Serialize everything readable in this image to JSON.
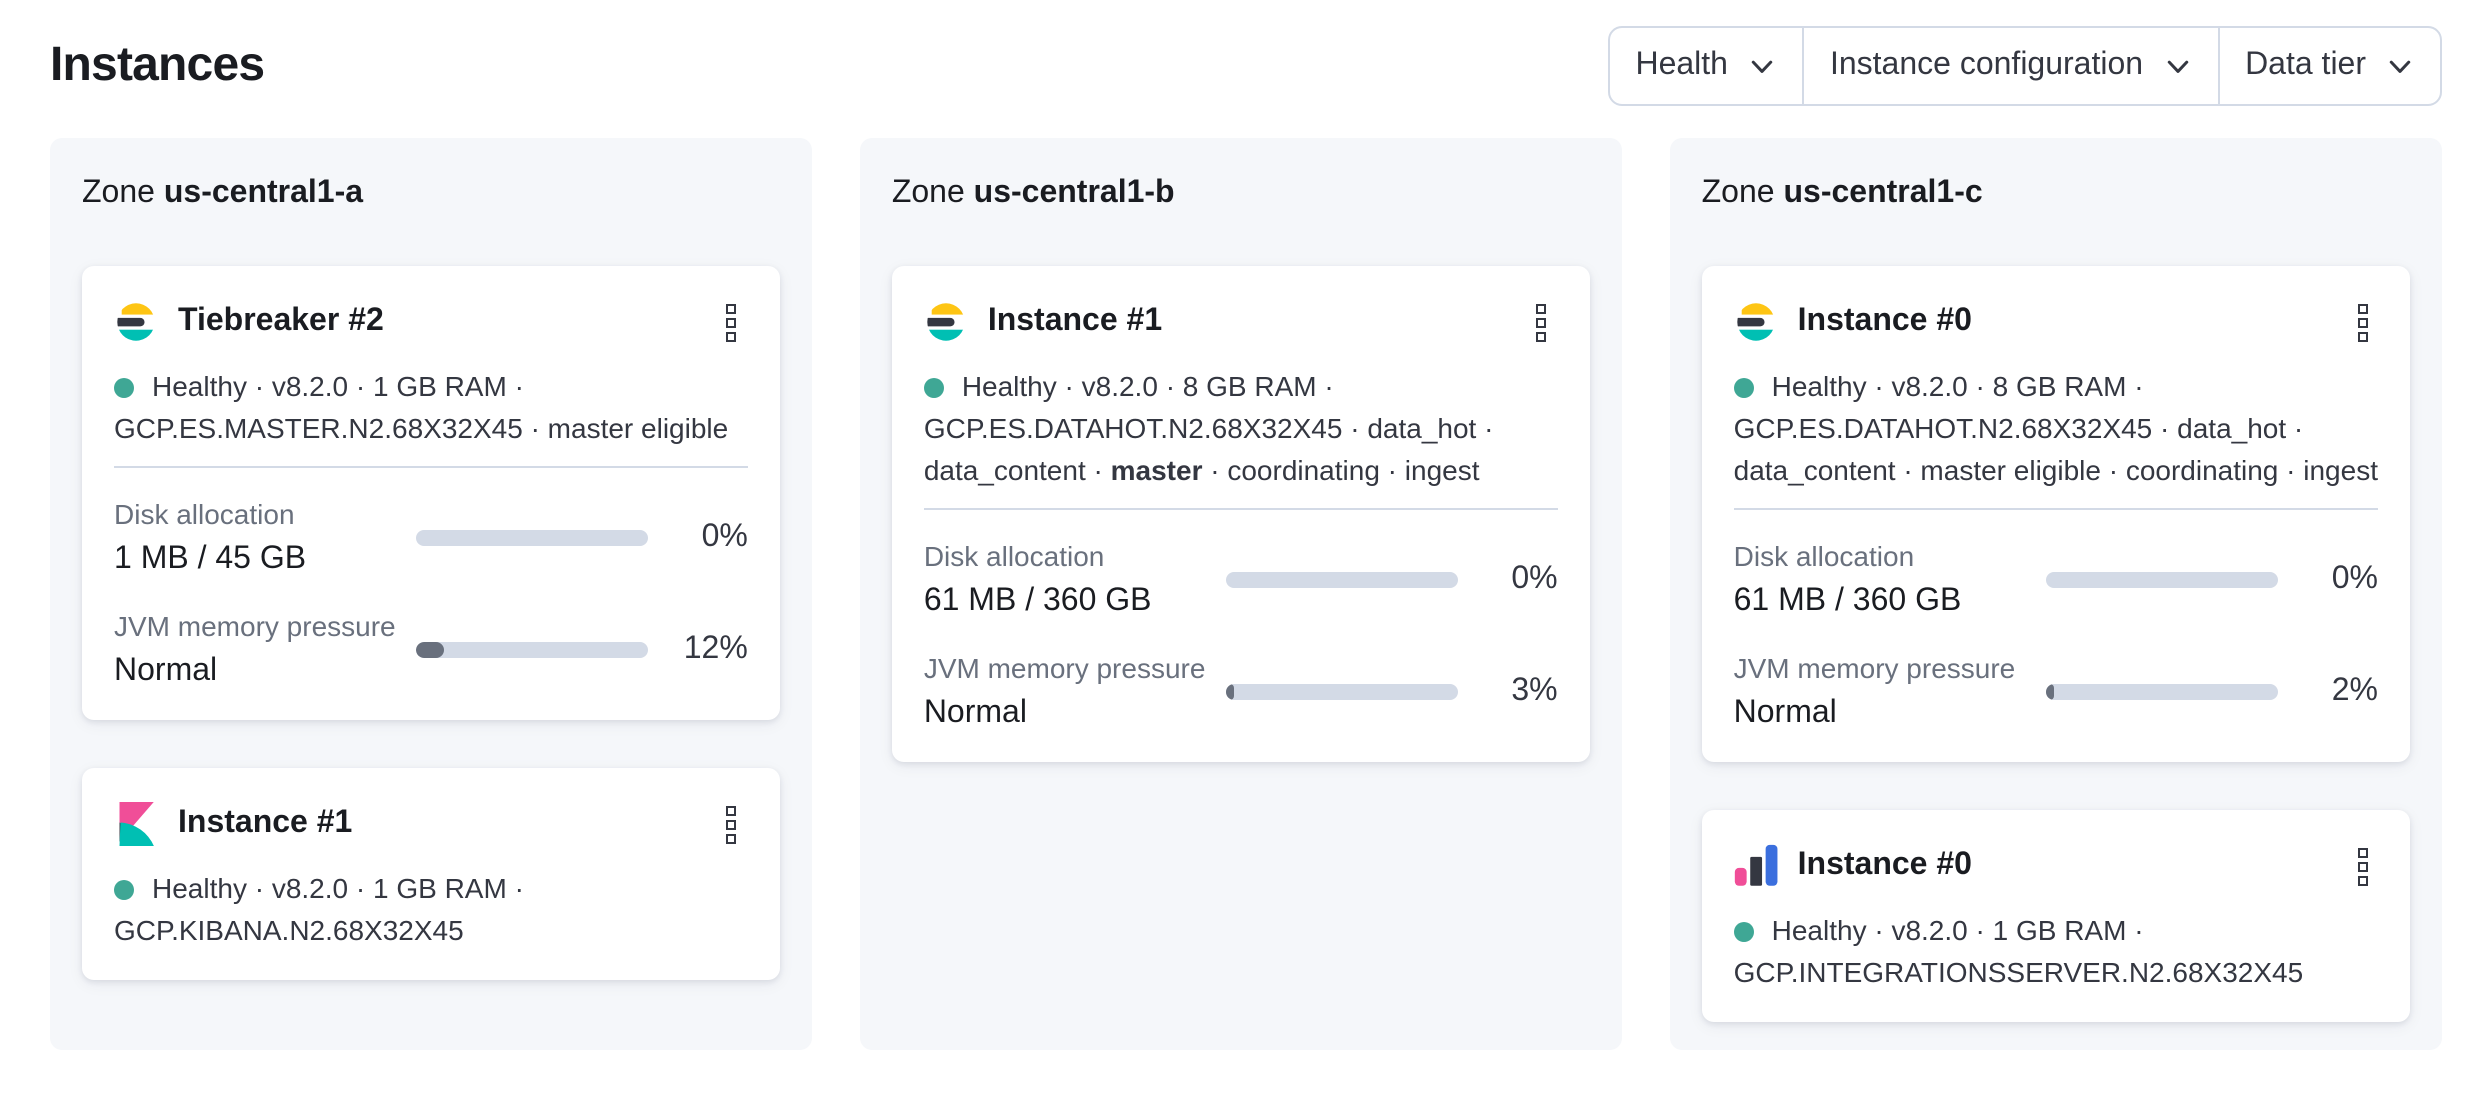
{
  "colors": {
    "accent_yellow": "#FEC514",
    "accent_teal": "#00BFB3",
    "accent_dark": "#343741",
    "accent_pink": "#F04E98",
    "accent_blue": "#3B6FDE",
    "health_dot": "#3FA795",
    "panel_bg": "#F5F7FA",
    "card_bg": "#FFFFFF",
    "border": "#D3DAE6",
    "track": "#D3DAE6",
    "bar_fill": "#69707D",
    "text_title": "#1A1C21",
    "text_body": "#343741",
    "text_subdued": "#69707D"
  },
  "header": {
    "title": "Instances"
  },
  "filters": [
    {
      "label": "Health"
    },
    {
      "label": "Instance configuration"
    },
    {
      "label": "Data tier"
    }
  ],
  "zones": [
    {
      "zone_label": "Zone",
      "zone_name": "us-central1-a",
      "cards": [
        {
          "logo": "elasticsearch-logo",
          "title": "Tiebreaker #2",
          "health": "Healthy",
          "status_lines": [
            "Healthy · v8.2.0 · 1 GB RAM ·",
            "GCP.ES.MASTER.N2.68X32X45 · master eligible"
          ],
          "metrics": [
            {
              "label": "Disk allocation",
              "value": "1 MB / 45 GB",
              "percent": "0%",
              "fill_pct": 0
            },
            {
              "label": "JVM memory pressure",
              "value": "Normal",
              "percent": "12%",
              "fill_pct": 12
            }
          ]
        },
        {
          "logo": "kibana-logo",
          "title": "Instance #1",
          "health": "Healthy",
          "status_lines": [
            "Healthy · v8.2.0 · 1 GB RAM ·",
            "GCP.KIBANA.N2.68X32X45"
          ],
          "metrics": []
        }
      ]
    },
    {
      "zone_label": "Zone",
      "zone_name": "us-central1-b",
      "cards": [
        {
          "logo": "elasticsearch-logo",
          "title": "Instance #1",
          "health": "Healthy",
          "status_lines": [
            "Healthy · v8.2.0 · 8 GB RAM ·",
            "GCP.ES.DATAHOT.N2.68X32X45 · data_hot ·",
            "data_content · **master** · coordinating · ingest"
          ],
          "metrics": [
            {
              "label": "Disk allocation",
              "value": "61 MB / 360 GB",
              "percent": "0%",
              "fill_pct": 0
            },
            {
              "label": "JVM memory pressure",
              "value": "Normal",
              "percent": "3%",
              "fill_pct": 3
            }
          ]
        }
      ]
    },
    {
      "zone_label": "Zone",
      "zone_name": "us-central1-c",
      "cards": [
        {
          "logo": "elasticsearch-logo",
          "title": "Instance #0",
          "health": "Healthy",
          "status_lines": [
            "Healthy · v8.2.0 · 8 GB RAM ·",
            "GCP.ES.DATAHOT.N2.68X32X45 · data_hot ·",
            "data_content · master eligible · coordinating · ingest"
          ],
          "metrics": [
            {
              "label": "Disk allocation",
              "value": "61 MB / 360 GB",
              "percent": "0%",
              "fill_pct": 0
            },
            {
              "label": "JVM memory pressure",
              "value": "Normal",
              "percent": "2%",
              "fill_pct": 2
            }
          ]
        },
        {
          "logo": "integrations-server-logo",
          "title": "Instance #0",
          "health": "Healthy",
          "status_lines": [
            "Healthy · v8.2.0 · 1 GB RAM ·",
            "GCP.INTEGRATIONSSERVER.N2.68X32X45"
          ],
          "metrics": []
        }
      ]
    }
  ]
}
